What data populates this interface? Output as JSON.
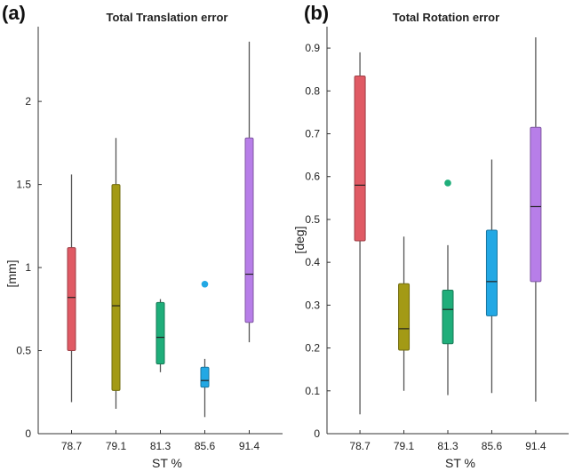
{
  "chart_data": [
    {
      "type": "box",
      "panel_label": "(a)",
      "title": "Total Translation error",
      "xlabel": "ST %",
      "ylabel": "[mm]",
      "categories": [
        "78.7",
        "79.1",
        "81.3",
        "85.6",
        "91.4"
      ],
      "ylim": [
        0,
        2.45
      ],
      "yticks": [
        0,
        0.5,
        1,
        1.5,
        2
      ],
      "ytick_labels": [
        "0",
        "0.5",
        "1",
        "1.5",
        "2"
      ],
      "boxes": [
        {
          "category": "78.7",
          "min": 0.19,
          "q1": 0.5,
          "median": 0.82,
          "q3": 1.12,
          "max": 1.56,
          "outliers": [],
          "color": "#e05a64"
        },
        {
          "category": "79.1",
          "min": 0.15,
          "q1": 0.26,
          "median": 0.77,
          "q3": 1.5,
          "max": 1.78,
          "outliers": [],
          "color": "#a39a15"
        },
        {
          "category": "81.3",
          "min": 0.37,
          "q1": 0.42,
          "median": 0.58,
          "q3": 0.79,
          "max": 0.81,
          "outliers": [],
          "color": "#1fae7a"
        },
        {
          "category": "85.6",
          "min": 0.1,
          "q1": 0.28,
          "median": 0.32,
          "q3": 0.4,
          "max": 0.45,
          "outliers": [
            0.9
          ],
          "color": "#22a8e4"
        },
        {
          "category": "91.4",
          "min": 0.55,
          "q1": 0.67,
          "median": 0.96,
          "q3": 1.78,
          "max": 2.36,
          "outliers": [],
          "color": "#b77ee8"
        }
      ],
      "grid": false
    },
    {
      "type": "box",
      "panel_label": "(b)",
      "title": "Total Rotation error",
      "xlabel": "ST %",
      "ylabel": "[deg]",
      "categories": [
        "78.7",
        "79.1",
        "81.3",
        "85.6",
        "91.4"
      ],
      "ylim": [
        0,
        0.95
      ],
      "yticks": [
        0,
        0.1,
        0.2,
        0.3,
        0.4,
        0.5,
        0.6,
        0.7,
        0.8,
        0.9
      ],
      "ytick_labels": [
        "0",
        "0.1",
        "0.2",
        "0.3",
        "0.4",
        "0.5",
        "0.6",
        "0.7",
        "0.8",
        "0.9"
      ],
      "boxes": [
        {
          "category": "78.7",
          "min": 0.045,
          "q1": 0.45,
          "median": 0.58,
          "q3": 0.835,
          "max": 0.89,
          "outliers": [],
          "color": "#e05a64"
        },
        {
          "category": "79.1",
          "min": 0.1,
          "q1": 0.195,
          "median": 0.245,
          "q3": 0.35,
          "max": 0.46,
          "outliers": [],
          "color": "#a39a15"
        },
        {
          "category": "81.3",
          "min": 0.09,
          "q1": 0.21,
          "median": 0.29,
          "q3": 0.335,
          "max": 0.44,
          "outliers": [
            0.585
          ],
          "color": "#1fae7a"
        },
        {
          "category": "85.6",
          "min": 0.095,
          "q1": 0.275,
          "median": 0.355,
          "q3": 0.475,
          "max": 0.64,
          "outliers": [],
          "color": "#22a8e4"
        },
        {
          "category": "91.4",
          "min": 0.075,
          "q1": 0.355,
          "median": 0.53,
          "q3": 0.715,
          "max": 0.925,
          "outliers": [],
          "color": "#b77ee8"
        }
      ],
      "grid": false
    }
  ]
}
